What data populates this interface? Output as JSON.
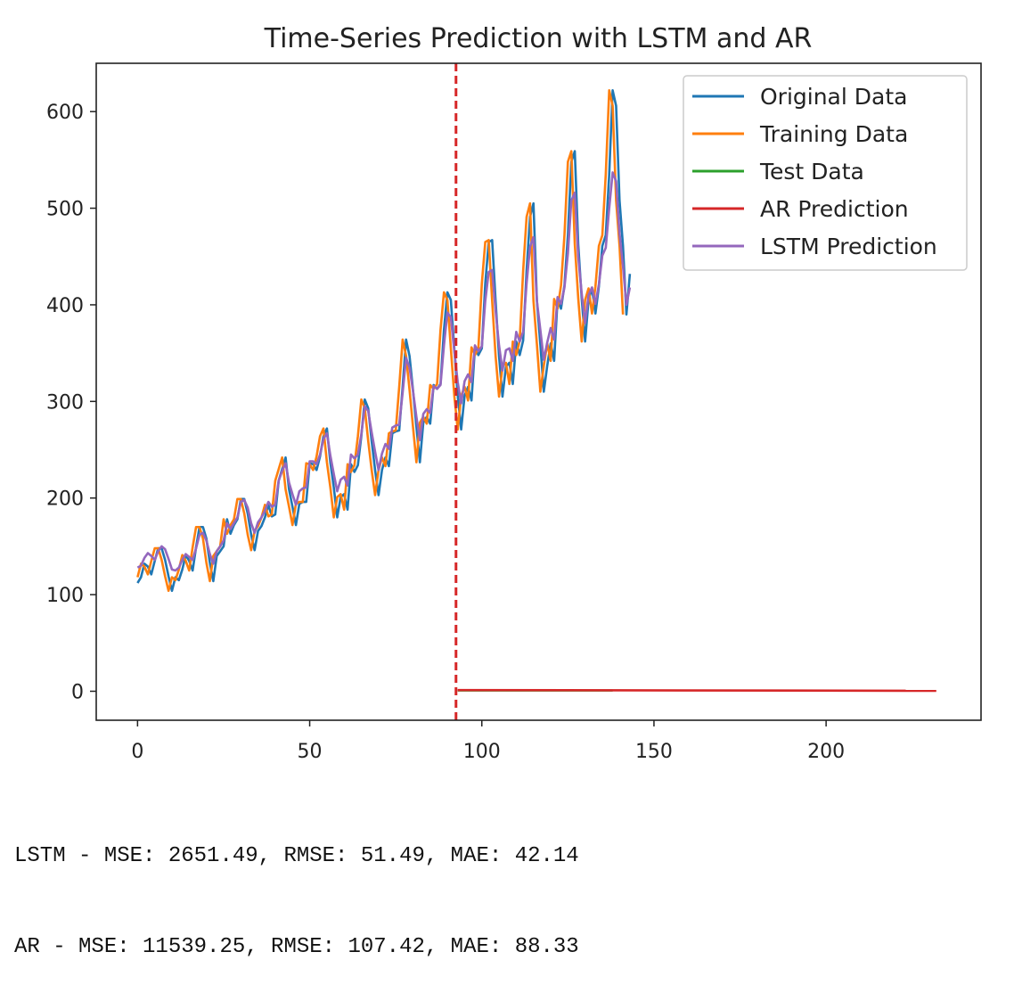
{
  "chart_data": {
    "type": "line",
    "title": "Time-Series Prediction with LSTM and AR",
    "xlabel": "",
    "ylabel": "",
    "xlim": [
      -12,
      245
    ],
    "ylim": [
      -30,
      650
    ],
    "xticks": [
      0,
      50,
      100,
      150,
      200
    ],
    "yticks": [
      0,
      100,
      200,
      300,
      400,
      500,
      600
    ],
    "grid": false,
    "legend_position": "top-right",
    "split_line": {
      "x": 92.5,
      "color": "#d62728",
      "style": "dashed"
    },
    "series": [
      {
        "name": "Original Data",
        "color": "#1f77b4",
        "x_start": 0,
        "values": [
          112,
          118,
          132,
          129,
          121,
          135,
          148,
          148,
          136,
          119,
          104,
          118,
          115,
          126,
          141,
          135,
          125,
          149,
          170,
          170,
          158,
          133,
          114,
          140,
          145,
          150,
          178,
          163,
          172,
          178,
          199,
          199,
          184,
          162,
          146,
          166,
          171,
          180,
          193,
          181,
          183,
          218,
          230,
          242,
          209,
          191,
          172,
          194,
          196,
          196,
          236,
          235,
          229,
          243,
          264,
          272,
          237,
          211,
          180,
          201,
          204,
          188,
          235,
          227,
          234,
          264,
          302,
          293,
          259,
          229,
          203,
          229,
          242,
          233,
          267,
          269,
          270,
          315,
          364,
          347,
          312,
          274,
          237,
          278,
          284,
          277,
          317,
          313,
          318,
          374,
          413,
          405,
          355,
          306,
          271,
          306,
          315,
          301,
          356,
          348,
          355,
          422,
          465,
          467,
          404,
          347,
          305,
          336,
          340,
          318,
          362,
          348,
          363,
          435,
          491,
          505,
          404,
          359,
          310,
          337,
          360,
          342,
          406,
          396,
          420,
          472,
          548,
          559,
          463,
          407,
          362,
          405,
          417,
          391,
          419,
          461,
          472,
          535,
          622,
          606,
          508,
          461,
          390,
          432
        ]
      },
      {
        "name": "Training Data",
        "color": "#ff7f0e",
        "x_start": 0,
        "values": [
          118,
          132,
          129,
          121,
          135,
          148,
          148,
          136,
          119,
          104,
          118,
          115,
          126,
          141,
          135,
          125,
          149,
          170,
          170,
          158,
          133,
          114,
          140,
          145,
          150,
          178,
          163,
          172,
          178,
          199,
          199,
          184,
          162,
          146,
          166,
          171,
          180,
          193,
          181,
          183,
          218,
          230,
          242,
          209,
          191,
          172,
          194,
          196,
          196,
          236,
          235,
          229,
          243,
          264,
          272,
          237,
          211,
          180,
          201,
          204,
          188,
          235,
          227,
          234,
          264,
          302,
          293,
          259,
          229,
          203,
          229,
          242,
          233,
          267,
          269,
          270,
          315,
          364,
          347,
          312,
          274,
          237,
          278,
          284,
          277,
          317,
          313,
          318,
          374,
          413,
          405,
          355,
          306,
          271,
          306,
          315,
          301,
          356,
          348,
          355,
          422,
          465,
          467,
          404,
          347,
          305,
          336,
          340,
          318,
          362,
          348,
          363,
          435,
          491,
          505,
          404,
          359,
          310,
          337,
          360,
          342,
          406,
          396,
          420,
          472,
          548,
          559,
          463,
          407,
          362,
          405,
          417,
          391,
          419,
          461,
          472,
          535,
          622,
          606,
          508,
          461,
          390
        ]
      },
      {
        "name": "Test Data",
        "color": "#2ca02c",
        "x_start": 93,
        "values": [
          0.8,
          0.8,
          0.8,
          0.8,
          0.8,
          0.8,
          0.8,
          0.8,
          0.8,
          0.8,
          0.8,
          0.8,
          0.8,
          0.8,
          0.8,
          0.8,
          0.8,
          0.8,
          0.8,
          0.8,
          0.8,
          0.8,
          0.8,
          0.8,
          0.8,
          0.8,
          0.8,
          0.8,
          0.8,
          0.8,
          0.8,
          0.8,
          0.8,
          0.8,
          0.8,
          0.8,
          0.8,
          0.8,
          0.8,
          0.8,
          0.8,
          0.8,
          0.8,
          0.8,
          0.8,
          0.8
        ]
      },
      {
        "name": "AR Prediction",
        "color": "#d62728",
        "x_start": 93,
        "x_end": 232,
        "y_start": 1.2,
        "y_end": 0.5
      },
      {
        "name": "LSTM Prediction",
        "color": "#9467bd",
        "x_start": 0,
        "values": [
          128,
          130,
          138,
          143,
          140,
          136,
          145,
          150,
          147,
          137,
          126,
          125,
          128,
          136,
          142,
          139,
          136,
          148,
          162,
          164,
          156,
          142,
          132,
          145,
          150,
          156,
          174,
          168,
          174,
          180,
          196,
          198,
          190,
          174,
          164,
          175,
          180,
          187,
          196,
          191,
          193,
          218,
          228,
          236,
          216,
          204,
          193,
          207,
          210,
          211,
          238,
          238,
          235,
          245,
          261,
          267,
          244,
          225,
          207,
          219,
          222,
          213,
          245,
          241,
          245,
          266,
          295,
          290,
          268,
          248,
          229,
          246,
          256,
          251,
          273,
          275,
          276,
          309,
          345,
          335,
          311,
          284,
          260,
          287,
          292,
          288,
          316,
          313,
          317,
          358,
          392,
          387,
          352,
          320,
          298,
          321,
          328,
          320,
          358,
          352,
          357,
          404,
          434,
          436,
          394,
          358,
          332,
          353,
          355,
          342,
          372,
          362,
          372,
          422,
          460,
          470,
          404,
          374,
          343,
          361,
          376,
          364,
          408,
          401,
          418,
          453,
          508,
          516,
          450,
          412,
          381,
          410,
          418,
          401,
          421,
          451,
          459,
          500,
          537,
          528,
          474,
          440,
          400,
          418
        ]
      }
    ]
  },
  "metrics": {
    "lstm": "LSTM - MSE: 2651.49, RMSE: 51.49, MAE: 42.14",
    "ar": "AR - MSE: 11539.25, RMSE: 107.42, MAE: 88.33"
  }
}
